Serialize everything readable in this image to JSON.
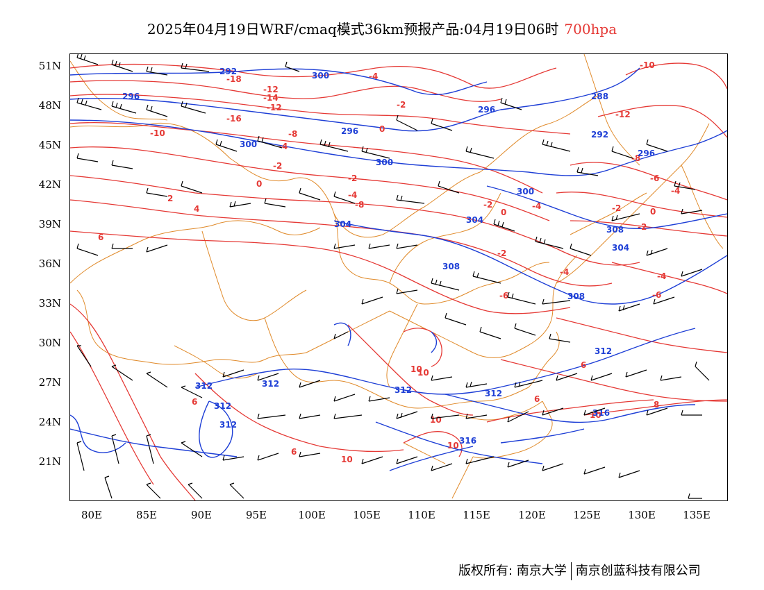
{
  "title": {
    "main": "2025年04月19日WRF/cmaq模式36km预报产品:04月19日06时",
    "level": "700hpa"
  },
  "axes": {
    "lat_labels": [
      "51N",
      "48N",
      "45N",
      "42N",
      "39N",
      "36N",
      "33N",
      "30N",
      "27N",
      "24N",
      "21N"
    ],
    "lon_labels": [
      "80E",
      "85E",
      "90E",
      "95E",
      "100E",
      "105E",
      "110E",
      "115E",
      "120E",
      "125E",
      "130E",
      "135E"
    ]
  },
  "colors": {
    "temperature": "#e53935",
    "geopotential": "#1e3fd6",
    "boundary": "#e08a2a",
    "wind": "#000000"
  },
  "contour_labels": {
    "temperature": [
      "-18",
      "-16",
      "-14",
      "-12",
      "-10",
      "-8",
      "-6",
      "-4",
      "-2",
      "0",
      "2",
      "4",
      "6",
      "8",
      "10"
    ],
    "geopotential": [
      "292",
      "296",
      "300",
      "304",
      "308",
      "312",
      "316"
    ]
  },
  "footer": {
    "owner": "版权所有: 南京大学",
    "company": "南京创蓝科技有限公司"
  }
}
